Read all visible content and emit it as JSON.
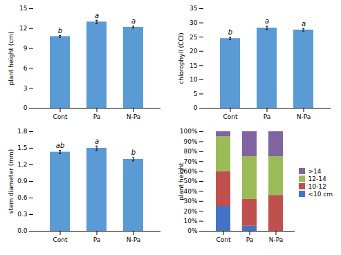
{
  "chart_data": [
    {
      "type": "bar",
      "categories": [
        "Cont",
        "Pa",
        "N-Pa"
      ],
      "values": [
        10.8,
        13.0,
        12.2
      ],
      "errors": [
        0.15,
        0.25,
        0.15
      ],
      "annotations": [
        "b",
        "a",
        "a"
      ],
      "color": "#5B9BD5",
      "ylabel": "plant height (cm)",
      "ylim": [
        0,
        15
      ],
      "yticks": [
        0,
        3,
        6,
        9,
        12,
        15
      ]
    },
    {
      "type": "bar",
      "categories": [
        "Cont",
        "Pa",
        "N-Pa"
      ],
      "values": [
        24.5,
        28.2,
        27.5
      ],
      "errors": [
        0.4,
        0.6,
        0.4
      ],
      "annotations": [
        "b",
        "a",
        "a"
      ],
      "color": "#5B9BD5",
      "ylabel": "chlorophyll (CCI)",
      "ylim": [
        0,
        35
      ],
      "yticks": [
        0,
        5,
        10,
        15,
        20,
        25,
        30,
        35
      ]
    },
    {
      "type": "bar",
      "categories": [
        "Cont",
        "Pa",
        "N-Pa"
      ],
      "values": [
        1.43,
        1.5,
        1.3
      ],
      "errors": [
        0.03,
        0.04,
        0.03
      ],
      "annotations": [
        "ab",
        "a",
        "b"
      ],
      "color": "#5B9BD5",
      "ylabel": "stem diameter (mm)",
      "ylim": [
        0,
        1.8
      ],
      "yticks": [
        {
          "value": 0,
          "label": "0.0"
        },
        0.3,
        0.6,
        0.9,
        1.2,
        1.5,
        1.8
      ]
    },
    {
      "type": "bar",
      "stacked": true,
      "legend": "right",
      "categories": [
        "Cont",
        "Pa",
        "N-Pa"
      ],
      "series": [
        {
          "name": "<10 cm",
          "color": "#4472C4",
          "values": [
            25,
            5,
            0
          ]
        },
        {
          "name": "10-12",
          "color": "#C0504D",
          "values": [
            35,
            27,
            36
          ]
        },
        {
          "name": "12-14",
          "color": "#9BBB59",
          "values": [
            35,
            43,
            39
          ]
        },
        {
          "name": ">14",
          "color": "#8064A2",
          "values": [
            5,
            25,
            25
          ]
        }
      ],
      "ylabel": "plant height",
      "ylim": [
        0,
        100
      ],
      "yticks": [
        {
          "value": 0,
          "label": "0%"
        },
        {
          "value": 10,
          "label": "10%"
        },
        {
          "value": 20,
          "label": "20%"
        },
        {
          "value": 30,
          "label": "30%"
        },
        {
          "value": 40,
          "label": "40%"
        },
        {
          "value": 50,
          "label": "50%"
        },
        {
          "value": 60,
          "label": "60%"
        },
        {
          "value": 70,
          "label": "70%"
        },
        {
          "value": 80,
          "label": "80%"
        },
        {
          "value": 90,
          "label": "90%"
        },
        {
          "value": 100,
          "label": "100%"
        }
      ]
    }
  ]
}
